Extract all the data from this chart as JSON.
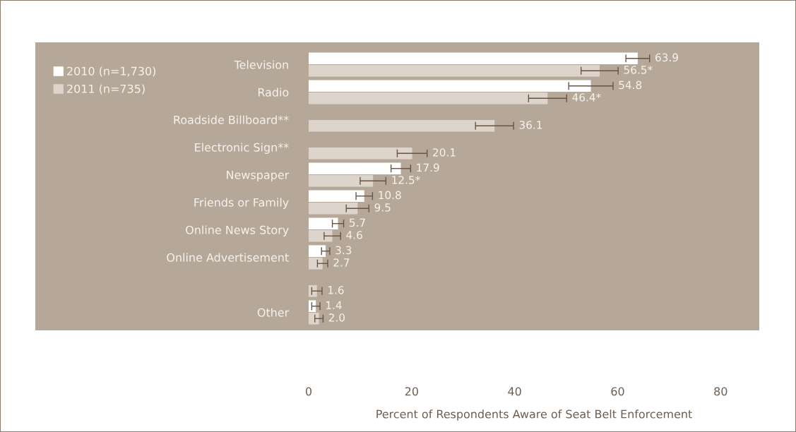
{
  "chart_data": {
    "type": "bar",
    "orientation": "horizontal",
    "xlabel": "Percent of Respondents Aware of Seat Belt Enforcement",
    "categories": [
      "Television",
      "Radio",
      "Roadside Billboard**",
      "Electronic Sign**",
      "Newspaper",
      "Friends or Family",
      "Online News Story",
      "Online Advertisement",
      null,
      "Other"
    ],
    "series": [
      {
        "name": "2010 (n=1,730)",
        "color": "#ffffff",
        "values": [
          63.9,
          54.8,
          null,
          null,
          17.9,
          10.8,
          5.7,
          3.3,
          null,
          1.4
        ],
        "errors": [
          2.3,
          4.3,
          null,
          null,
          1.9,
          1.6,
          1.1,
          0.8,
          null,
          0.8
        ],
        "value_labels": [
          "63.9",
          "54.8",
          null,
          null,
          "17.9",
          "10.8",
          "5.7",
          "3.3",
          null,
          "1.4"
        ]
      },
      {
        "name": "2011 (n=735)",
        "color": "#ddd5cc",
        "values": [
          56.5,
          46.4,
          36.1,
          20.1,
          12.5,
          9.5,
          4.6,
          2.7,
          1.6,
          2.0
        ],
        "errors": [
          3.6,
          3.7,
          3.7,
          2.9,
          2.5,
          2.2,
          1.6,
          1.0,
          1.0,
          0.8
        ],
        "value_labels": [
          "56.5*",
          "46.4*",
          "36.1",
          "20.1",
          "12.5*",
          "9.5",
          "4.6",
          "2.7",
          "1.6",
          "2.0"
        ]
      }
    ],
    "xlim": [
      0,
      87.5
    ],
    "xticks": [
      0,
      20,
      40,
      60,
      80
    ],
    "grid": false,
    "legend": "top left"
  }
}
